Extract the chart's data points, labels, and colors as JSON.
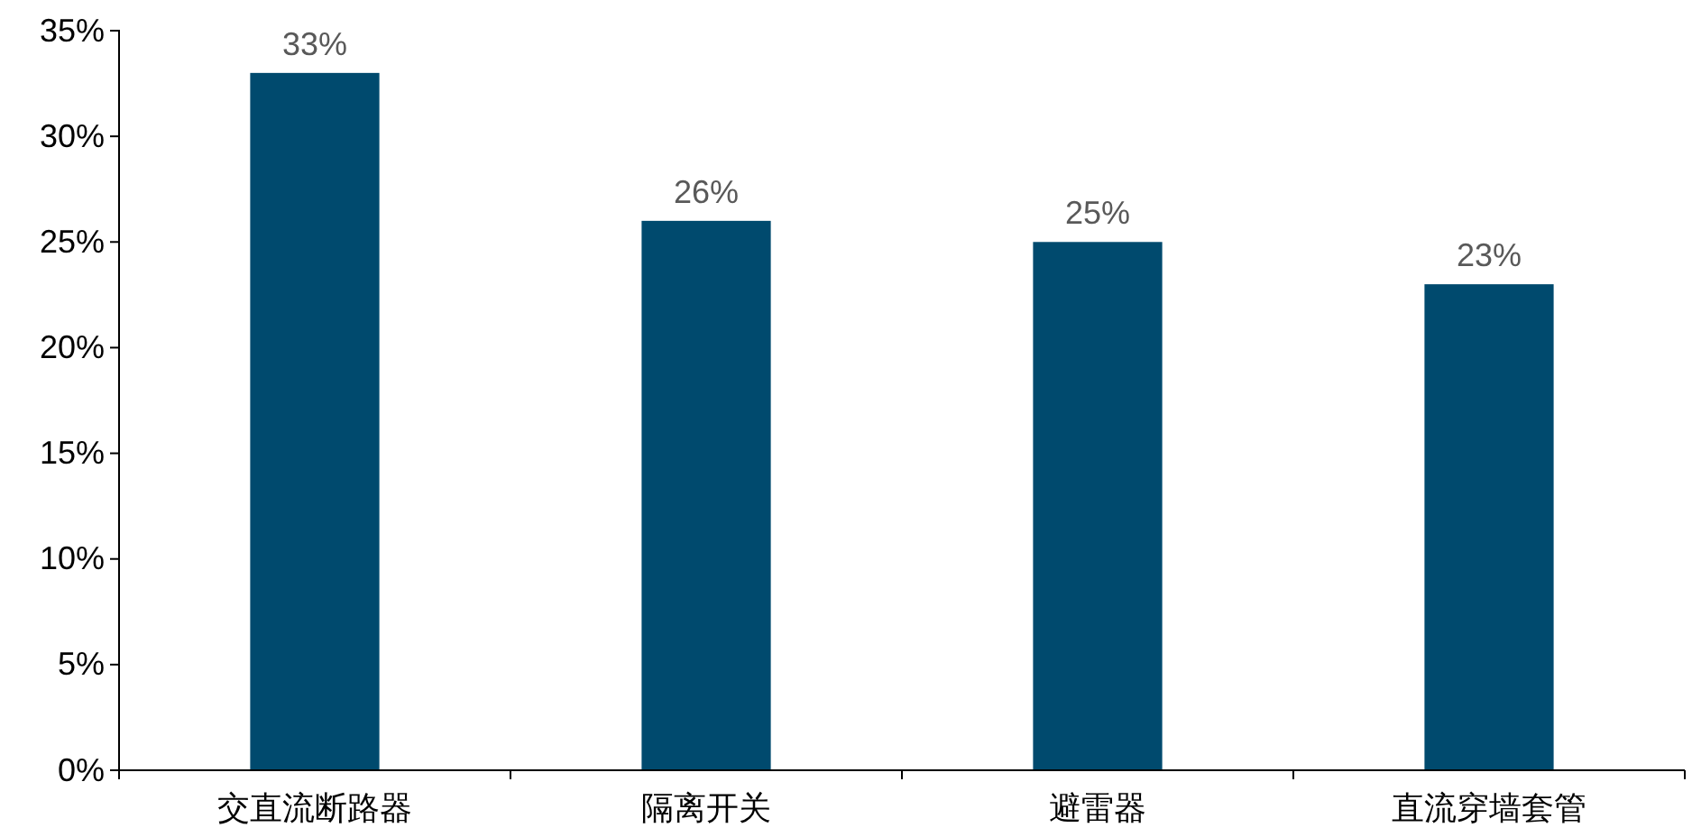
{
  "chart_data": {
    "type": "bar",
    "categories": [
      "交直流断路器",
      "隔离开关",
      "避雷器",
      "直流穿墙套管"
    ],
    "values": [
      33,
      26,
      25,
      23
    ],
    "color": "#004a6e",
    "ylim": [
      0,
      35
    ],
    "yticks": [
      {
        "value": 0,
        "label": "0%"
      },
      {
        "value": 5,
        "label": "5%"
      },
      {
        "value": 10,
        "label": "10%"
      },
      {
        "value": 15,
        "label": "15%"
      },
      {
        "value": 20,
        "label": "20%"
      },
      {
        "value": 25,
        "label": "25%"
      },
      {
        "value": 30,
        "label": "30%"
      },
      {
        "value": 35,
        "label": "35%"
      }
    ],
    "value_labels": [
      "33%",
      "26%",
      "25%",
      "23%"
    ],
    "grid": false
  }
}
